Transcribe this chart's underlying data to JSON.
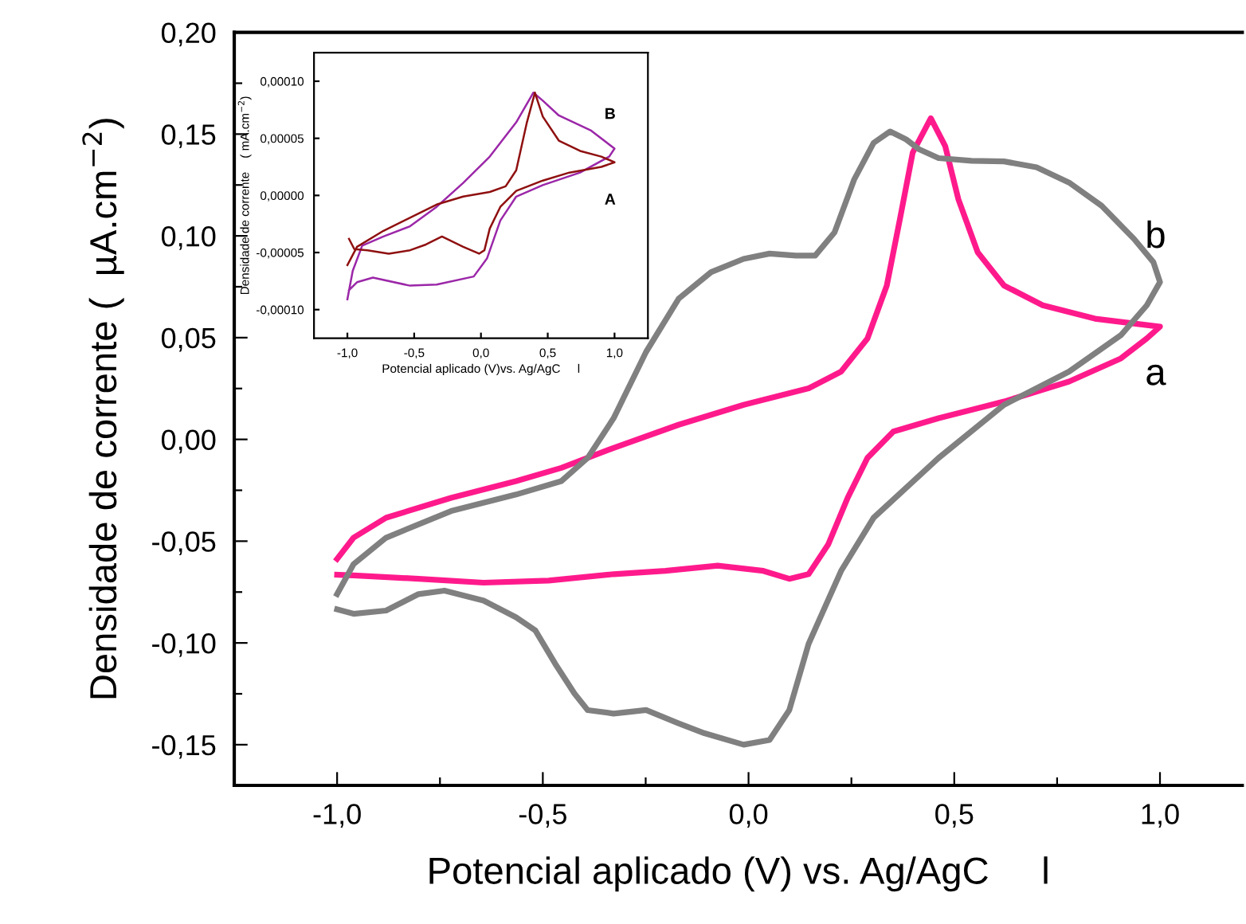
{
  "chart_data": [
    {
      "type": "line",
      "xlabel": "Potencial aplicado (V) vs. Ag/AgC     l",
      "ylabel": "Densidade de corrente (  µA.cm$^{−2}$)",
      "xlim": [
        -1.25,
        1.2
      ],
      "ylim": [
        -0.17,
        0.2
      ],
      "xticks": [
        {
          "value": -1.0,
          "label": "-1,0"
        },
        {
          "value": -0.75,
          "label": null
        },
        {
          "value": -0.5,
          "label": "-0,5"
        },
        {
          "value": -0.25,
          "label": null
        },
        {
          "value": 0.0,
          "label": "0,0"
        },
        {
          "value": 0.25,
          "label": null
        },
        {
          "value": 0.5,
          "label": "0,5"
        },
        {
          "value": 0.75,
          "label": null
        },
        {
          "value": 1.0,
          "label": "1,0"
        }
      ],
      "yticks": [
        {
          "value": -0.15,
          "label": "-0,15"
        },
        {
          "value": -0.125,
          "label": null
        },
        {
          "value": -0.1,
          "label": "-0,10"
        },
        {
          "value": -0.075,
          "label": null
        },
        {
          "value": -0.05,
          "label": "-0,05"
        },
        {
          "value": -0.025,
          "label": null
        },
        {
          "value": 0.0,
          "label": "0,00"
        },
        {
          "value": 0.025,
          "label": null
        },
        {
          "value": 0.05,
          "label": "0,05"
        },
        {
          "value": 0.075,
          "label": null
        },
        {
          "value": 0.1,
          "label": "0,10"
        },
        {
          "value": 0.125,
          "label": null
        },
        {
          "value": 0.15,
          "label": "0,15"
        },
        {
          "value": 0.175,
          "label": null
        },
        {
          "value": 0.2,
          "label": "0,20"
        }
      ],
      "grid": false,
      "line_style": "solid",
      "series": [
        {
          "name": "a",
          "color": "#ff1a8c",
          "x": [
            -1.0,
            -0.96,
            -0.881,
            -0.723,
            -0.565,
            -0.455,
            -0.328,
            -0.17,
            -0.012,
            0.146,
            0.225,
            0.289,
            0.336,
            0.368,
            0.399,
            0.443,
            0.478,
            0.51,
            0.557,
            0.621,
            0.715,
            0.842,
            1.0,
            0.968,
            0.905,
            0.779,
            0.621,
            0.462,
            0.352,
            0.289,
            0.241,
            0.194,
            0.146,
            0.099,
            0.036,
            -0.075,
            -0.202,
            -0.328,
            -0.486,
            -0.644,
            -0.802,
            -0.96,
            -1.0
          ],
          "values": [
            -0.0587,
            -0.0483,
            -0.0385,
            -0.0287,
            -0.0205,
            -0.014,
            -0.0042,
            0.0072,
            0.017,
            0.0251,
            0.0333,
            0.0496,
            0.0756,
            0.1083,
            0.1409,
            0.1578,
            0.1441,
            0.118,
            0.0919,
            0.0756,
            0.0659,
            0.0593,
            0.0554,
            0.0496,
            0.0398,
            0.0284,
            0.0186,
            0.0104,
            0.0039,
            -0.0091,
            -0.0287,
            -0.0515,
            -0.0662,
            -0.0685,
            -0.0646,
            -0.062,
            -0.0646,
            -0.0662,
            -0.0694,
            -0.0704,
            -0.0685,
            -0.0668,
            -0.0665
          ]
        },
        {
          "name": "b",
          "color": "#808080",
          "x": [
            -1.0,
            -0.96,
            -0.881,
            -0.723,
            -0.565,
            -0.455,
            -0.391,
            -0.328,
            -0.249,
            -0.17,
            -0.091,
            -0.012,
            0.051,
            0.115,
            0.162,
            0.209,
            0.257,
            0.304,
            0.344,
            0.383,
            0.415,
            0.462,
            0.542,
            0.621,
            0.7,
            0.779,
            0.858,
            0.937,
            0.984,
            1.0,
            0.968,
            0.905,
            0.779,
            0.621,
            0.462,
            0.304,
            0.225,
            0.146,
            0.099,
            0.051,
            -0.012,
            -0.107,
            -0.17,
            -0.249,
            -0.328,
            -0.391,
            -0.423,
            -0.47,
            -0.518,
            -0.565,
            -0.644,
            -0.739,
            -0.802,
            -0.881,
            -0.96,
            -1.0
          ],
          "values": [
            -0.076,
            -0.0613,
            -0.0483,
            -0.0352,
            -0.0271,
            -0.0205,
            -0.0091,
            0.0104,
            0.043,
            0.0691,
            0.0822,
            0.0887,
            0.0913,
            0.0903,
            0.0903,
            0.1017,
            0.1278,
            0.1457,
            0.1513,
            0.1474,
            0.1425,
            0.1382,
            0.1369,
            0.1366,
            0.1337,
            0.1262,
            0.1148,
            0.0985,
            0.0871,
            0.0773,
            0.0659,
            0.0512,
            0.0333,
            0.017,
            -0.0091,
            -0.0385,
            -0.0646,
            -0.1004,
            -0.133,
            -0.1477,
            -0.15,
            -0.1444,
            -0.1395,
            -0.133,
            -0.1347,
            -0.133,
            -0.1249,
            -0.1102,
            -0.0939,
            -0.0874,
            -0.0792,
            -0.0743,
            -0.076,
            -0.0841,
            -0.0857,
            -0.0835
          ]
        }
      ]
    },
    {
      "type": "line",
      "xlabel": "Potencial aplicado (V)vs. Ag/AgC     l",
      "ylabel": "Densidade de corrente    ( mA.cm$^{−2}$)",
      "xlim": [
        -1.25,
        1.25
      ],
      "ylim": [
        -0.000125,
        0.000125
      ],
      "xticks": [
        {
          "value": -1.0,
          "label": "-1,0"
        },
        {
          "value": -0.5,
          "label": "-0,5"
        },
        {
          "value": 0.0,
          "label": "0,0"
        },
        {
          "value": 0.5,
          "label": "0,5"
        },
        {
          "value": 1.0,
          "label": "1,0"
        }
      ],
      "yticks": [
        {
          "value": -0.0001,
          "label": "-0,00010"
        },
        {
          "value": -5e-05,
          "label": "-0,00005"
        },
        {
          "value": 0.0,
          "label": "0,00000"
        },
        {
          "value": 5e-05,
          "label": "0,00005"
        },
        {
          "value": 0.0001,
          "label": "0,00010"
        }
      ],
      "grid": false,
      "line_style": "solid",
      "series": [
        {
          "name": "B",
          "color": "#9b27a8",
          "x": [
            -1.0,
            -0.96,
            -0.889,
            -0.73,
            -0.531,
            -0.332,
            -0.133,
            0.066,
            0.264,
            0.392,
            0.463,
            0.583,
            0.821,
            1.0,
            0.96,
            0.742,
            0.463,
            0.264,
            0.145,
            0.046,
            -0.054,
            -0.332,
            -0.531,
            -0.809,
            -0.928,
            -0.988
          ],
          "values": [
            -9.1e-05,
            -6.6e-05,
            -4.4e-05,
            -3.6e-05,
            -2.7e-05,
            -1e-05,
            1.1e-05,
            3.4e-05,
            6.4e-05,
            9e-05,
            8.3e-05,
            7e-05,
            5.7e-05,
            4.1e-05,
            3.4e-05,
            2e-05,
            9e-06,
            -1e-06,
            -2.2e-05,
            -5.5e-05,
            -7.1e-05,
            -7.8e-05,
            -7.9e-05,
            -7.2e-05,
            -7.6e-05,
            -8.3e-05
          ]
        },
        {
          "name": "A",
          "color": "#8f1010",
          "x": [
            -1.0,
            -0.928,
            -0.73,
            -0.332,
            -0.133,
            0.066,
            0.185,
            0.264,
            0.344,
            0.404,
            0.463,
            0.583,
            0.742,
            0.901,
            1.0,
            0.901,
            0.662,
            0.463,
            0.264,
            0.145,
            0.066,
            0.026,
            -0.014,
            -0.133,
            -0.292,
            -0.412,
            -0.531,
            -0.69,
            -0.849,
            -0.948,
            -0.988
          ],
          "values": [
            -6.1e-05,
            -4.5e-05,
            -3.1e-05,
            -8e-06,
            -1e-06,
            3e-06,
            8e-06,
            2.2e-05,
            6.4e-05,
            9e-05,
            6.9e-05,
            4.8e-05,
            3.9e-05,
            3.4e-05,
            2.9e-05,
            2.5e-05,
            2e-05,
            1.3e-05,
            4e-06,
            -1e-05,
            -2.9e-05,
            -4.8e-05,
            -5.1e-05,
            -4.5e-05,
            -3.6e-05,
            -4.3e-05,
            -4.8e-05,
            -5.1e-05,
            -4.8e-05,
            -4.7e-05,
            -3.8e-05
          ]
        }
      ]
    }
  ]
}
